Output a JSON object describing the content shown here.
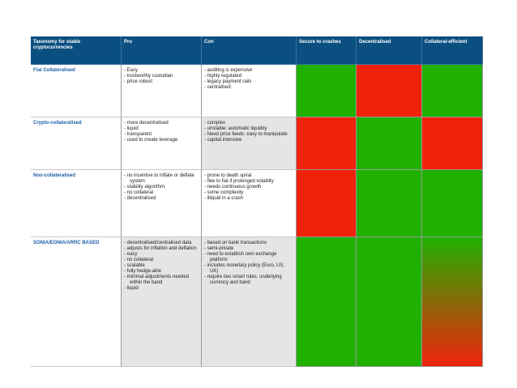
{
  "table": {
    "header": [
      "Taxonomy for stable cryptocurrencies",
      "Pro",
      "Con",
      "Secure to crashes",
      "Decentralised",
      "Collateral-efficient"
    ],
    "rows": [
      {
        "label": "Fiat Collateralised",
        "pro": [
          "- Easy",
          "- trustworthy custodian",
          "- price robust"
        ],
        "con": [
          "- auditing is expensive",
          "- highly regulated",
          "- legacy payment rails",
          "- centralised"
        ],
        "colors": [
          [
            "#20b000"
          ],
          [
            "#f0220c"
          ],
          [
            "#20b000"
          ]
        ]
      },
      {
        "label": "Crypto-collateralised",
        "pro": [
          "- more decentralised",
          "- liquid",
          "- transparent",
          "- used to create leverage"
        ],
        "con": [
          "- complex",
          "- unstable: automatic liquidity",
          "- Need price feeds: easy to manipulate",
          "- capital intensive"
        ],
        "colors": [
          [
            "#f0220c"
          ],
          [
            "#20b000"
          ],
          [
            "#f0220c"
          ]
        ]
      },
      {
        "label": "Non-collateralised",
        "pro": [
          "- no incentive to inflate or deflate system",
          "- stability algorithm",
          "- no collateral",
          "- decentralised"
        ],
        "con": [
          "- prone to death spiral",
          "- flee to fiat if prolonged volatility",
          "- needs continuous growth",
          "- some complexity",
          "- illiquid in a crash"
        ],
        "colors": [
          [
            "#f0220c"
          ],
          [
            "#20b000"
          ],
          [
            "#20b000"
          ]
        ]
      },
      {
        "label": "SONIA/EONIA/ARRC BASED",
        "pro": [
          "- decentralised/centralised data",
          "- adjusts for inflation and deflation",
          "- easy",
          "- no collateral",
          "- scalable",
          "- fully hedge-able",
          "- minimal adjustments needed within the band",
          "- liquid"
        ],
        "con": [
          "- based on bank transactions",
          "- semi-private",
          "- need to establish own exchange platform",
          "- includes monetary policy (Euro, US, UK)",
          "- require two smart rules, underlying currency and band"
        ],
        "colors": [
          [
            "#20b000"
          ],
          [
            "#20b000"
          ],
          [
            "#20b000",
            "#f0220c"
          ]
        ]
      }
    ]
  }
}
